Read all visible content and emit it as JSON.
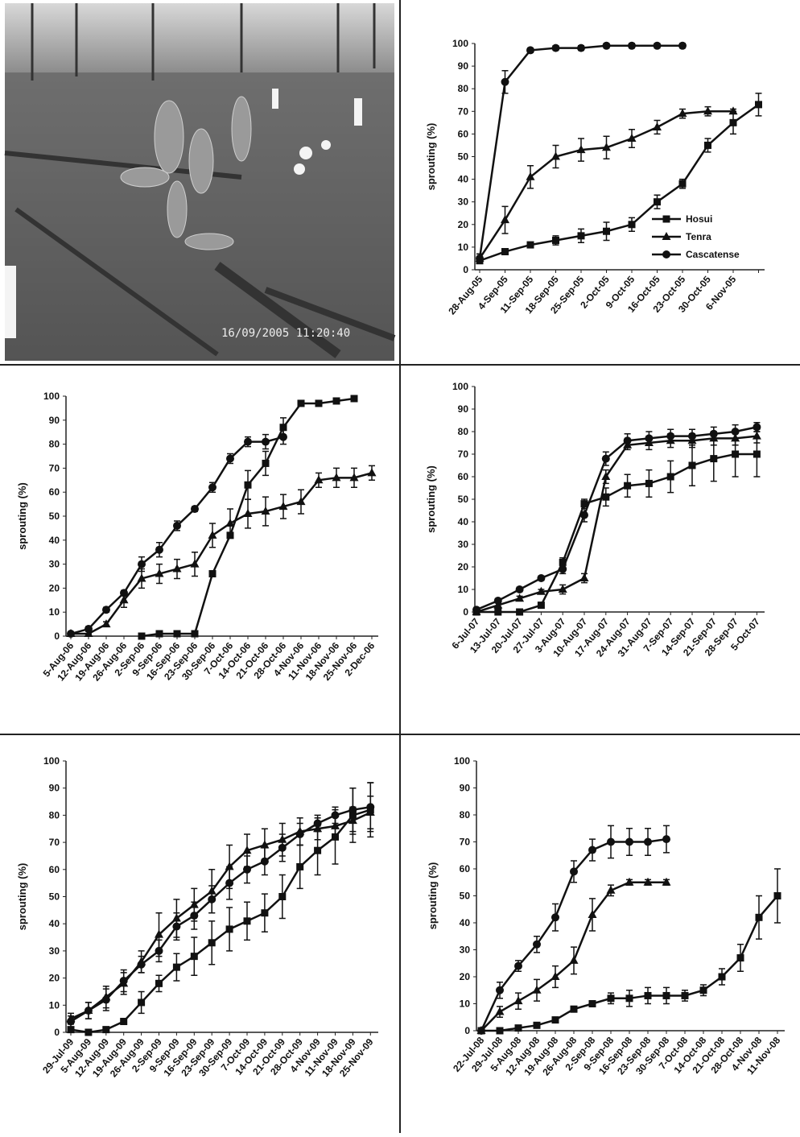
{
  "photo": {
    "timestamp": "16/09/2005 11:20:40"
  },
  "chart_data": [
    {
      "type": "line",
      "y_label": "sprouting (%)",
      "ylim": [
        0,
        100
      ],
      "yticks": [
        0,
        10,
        20,
        30,
        40,
        50,
        60,
        70,
        80,
        90,
        100
      ],
      "legend": "right",
      "categories": [
        "28-Aug-05",
        "4-Sep-05",
        "11-Sep-05",
        "18-Sep-05",
        "25-Sep-05",
        "2-Oct-05",
        "9-Oct-05",
        "16-Oct-05",
        "23-Oct-05",
        "30-Oct-05",
        "6-Nov-05",
        null
      ],
      "series": [
        {
          "name": "Hosui",
          "marker": "square",
          "color": "#111111",
          "values": [
            4,
            8,
            11,
            13,
            15,
            17,
            20,
            30,
            38,
            55,
            65,
            73
          ],
          "errors": [
            1,
            1,
            1,
            2,
            3,
            4,
            3,
            3,
            2,
            3,
            5,
            5
          ]
        },
        {
          "name": "Tenra",
          "marker": "triangle",
          "color": "#111111",
          "values": [
            5,
            22,
            41,
            50,
            53,
            54,
            58,
            63,
            69,
            70,
            70,
            null
          ],
          "errors": [
            2,
            6,
            5,
            5,
            5,
            5,
            4,
            3,
            2,
            2,
            1,
            null
          ]
        },
        {
          "name": "Cascatense",
          "marker": "circle",
          "color": "#111111",
          "values": [
            5,
            83,
            97,
            98,
            98,
            99,
            99,
            99,
            99,
            null,
            null,
            null
          ],
          "errors": [
            2,
            5,
            1,
            1,
            1,
            1,
            1,
            1,
            1,
            null,
            null,
            null
          ]
        }
      ]
    },
    {
      "type": "line",
      "y_label": "sprouting (%)",
      "ylim": [
        0,
        100
      ],
      "yticks": [
        0,
        10,
        20,
        30,
        40,
        50,
        60,
        70,
        80,
        90,
        100
      ],
      "categories": [
        "5-Aug-06",
        "12-Aug-06",
        "19-Aug-06",
        "26-Aug-06",
        "2-Sep-06",
        "9-Sep-06",
        "16-Sep-06",
        "23-Sep-06",
        "30-Sep-06",
        "7-Oct-06",
        "14-Oct-06",
        "21-Oct-06",
        "28-Oct-06",
        "4-Nov-06",
        "11-Nov-06",
        "18-Nov-06",
        "25-Nov-06",
        "2-Dec-06"
      ],
      "series": [
        {
          "marker": "square",
          "color": "#111111",
          "values": [
            null,
            null,
            null,
            null,
            0,
            1,
            1,
            1,
            26,
            42,
            63,
            72,
            87,
            97,
            97,
            98,
            99,
            null
          ],
          "errors": [
            null,
            null,
            null,
            null,
            0,
            0,
            0,
            0,
            1,
            1,
            6,
            5,
            4,
            1,
            1,
            1,
            1,
            null
          ]
        },
        {
          "marker": "triangle",
          "color": "#111111",
          "values": [
            1,
            1,
            5,
            15,
            24,
            26,
            28,
            30,
            42,
            47,
            51,
            52,
            54,
            56,
            65,
            66,
            66,
            68
          ],
          "errors": [
            0,
            0,
            1,
            3,
            4,
            4,
            4,
            5,
            5,
            6,
            6,
            6,
            5,
            5,
            3,
            4,
            4,
            3
          ]
        },
        {
          "marker": "circle",
          "color": "#111111",
          "values": [
            1,
            3,
            11,
            18,
            30,
            36,
            46,
            53,
            62,
            74,
            81,
            81,
            83,
            null,
            null,
            null,
            null,
            null
          ],
          "errors": [
            0,
            1,
            1,
            1,
            3,
            3,
            2,
            1,
            2,
            2,
            2,
            3,
            3,
            null,
            null,
            null,
            null,
            null
          ]
        }
      ]
    },
    {
      "type": "line",
      "y_label": "sprouting (%)",
      "ylim": [
        0,
        100
      ],
      "yticks": [
        0,
        10,
        20,
        30,
        40,
        50,
        60,
        70,
        80,
        90,
        100
      ],
      "categories": [
        "6-Jul-07",
        "13-Jul-07",
        "20-Jul-07",
        "27-Jul-07",
        "3-Aug-07",
        "10-Aug-07",
        "17-Aug-07",
        "24-Aug-07",
        "31-Aug-07",
        "7-Sep-07",
        "14-Sep-07",
        "21-Sep-07",
        "28-Sep-07",
        "5-Oct-07"
      ],
      "series": [
        {
          "marker": "square",
          "color": "#111111",
          "values": [
            0,
            0,
            0,
            3,
            22,
            48,
            51,
            56,
            57,
            60,
            65,
            68,
            70,
            70
          ],
          "errors": [
            0,
            0,
            0,
            1,
            2,
            2,
            4,
            5,
            6,
            7,
            9,
            10,
            10,
            10
          ]
        },
        {
          "marker": "triangle",
          "color": "#111111",
          "values": [
            0,
            3,
            6,
            9,
            10,
            15,
            60,
            74,
            75,
            76,
            76,
            77,
            77,
            78
          ],
          "errors": [
            0,
            1,
            1,
            1,
            2,
            2,
            3,
            2,
            3,
            3,
            3,
            3,
            3,
            3
          ]
        },
        {
          "marker": "circle",
          "color": "#111111",
          "values": [
            1,
            5,
            10,
            15,
            19,
            43,
            68,
            76,
            77,
            78,
            78,
            79,
            80,
            82
          ],
          "errors": [
            0,
            1,
            1,
            1,
            2,
            3,
            3,
            3,
            3,
            3,
            3,
            3,
            3,
            2
          ]
        }
      ]
    },
    {
      "type": "line",
      "y_label": "sprouting (%)",
      "ylim": [
        0,
        100
      ],
      "yticks": [
        0,
        10,
        20,
        30,
        40,
        50,
        60,
        70,
        80,
        90,
        100
      ],
      "categories": [
        "29-Jul-09",
        "5-Aug-09",
        "12-Aug-09",
        "19-Aug-09",
        "26-Aug-09",
        "2-Sep-09",
        "9-Sep-09",
        "16-Sep-09",
        "23-Sep-09",
        "30-Sep-09",
        "7-Oct-09",
        "14-Oct-09",
        "21-Oct-09",
        "28-Oct-09",
        "4-Nov-09",
        "11-Nov-09",
        "18-Nov-09",
        "25-Nov-09"
      ],
      "series": [
        {
          "marker": "square",
          "color": "#111111",
          "values": [
            1,
            0,
            1,
            4,
            11,
            18,
            24,
            28,
            33,
            38,
            41,
            44,
            50,
            61,
            67,
            72,
            80,
            82
          ],
          "errors": [
            0,
            0,
            0,
            1,
            4,
            3,
            5,
            7,
            8,
            8,
            7,
            7,
            8,
            8,
            9,
            10,
            10,
            10
          ]
        },
        {
          "marker": "circle",
          "color": "#111111",
          "values": [
            4,
            8,
            12,
            19,
            25,
            30,
            39,
            43,
            49,
            55,
            60,
            63,
            68,
            73,
            77,
            80,
            82,
            83
          ],
          "errors": [
            2,
            3,
            4,
            4,
            3,
            4,
            5,
            5,
            5,
            6,
            5,
            5,
            5,
            4,
            3,
            3,
            8,
            9
          ]
        },
        {
          "marker": "triangle",
          "color": "#111111",
          "values": [
            5,
            8,
            13,
            18,
            26,
            36,
            42,
            47,
            52,
            61,
            67,
            69,
            71,
            74,
            75,
            76,
            78,
            81
          ],
          "errors": [
            2,
            3,
            4,
            4,
            4,
            8,
            7,
            6,
            8,
            8,
            6,
            6,
            6,
            5,
            4,
            4,
            5,
            6
          ]
        }
      ]
    },
    {
      "type": "line",
      "y_label": "sprouting (%)",
      "ylim": [
        0,
        100
      ],
      "yticks": [
        0,
        10,
        20,
        30,
        40,
        50,
        60,
        70,
        80,
        90,
        100
      ],
      "categories": [
        "22-Jul-08",
        "29-Jul-08",
        "5-Aug-08",
        "12-Aug-08",
        "19-Aug-08",
        "26-Aug-08",
        "2-Sep-08",
        "9-Sep-08",
        "16-Sep-08",
        "23-Sep-08",
        "30-Sep-08",
        "7-Oct-08",
        "14-Oct-08",
        "21-Oct-08",
        "28-Oct-08",
        "4-Nov-08",
        "11-Nov-08"
      ],
      "series": [
        {
          "marker": "square",
          "color": "#111111",
          "values": [
            0,
            0,
            1,
            2,
            4,
            8,
            10,
            12,
            12,
            13,
            13,
            13,
            15,
            20,
            27,
            42,
            50
          ],
          "errors": [
            0,
            0,
            0,
            0,
            1,
            1,
            1,
            2,
            3,
            3,
            3,
            2,
            2,
            3,
            5,
            8,
            10
          ]
        },
        {
          "marker": "triangle",
          "color": "#111111",
          "values": [
            0,
            7,
            11,
            15,
            20,
            26,
            43,
            52,
            55,
            55,
            55,
            null,
            null,
            null,
            null,
            null,
            null
          ],
          "errors": [
            0,
            2,
            3,
            4,
            4,
            5,
            6,
            2,
            1,
            1,
            1,
            null,
            null,
            null,
            null,
            null,
            null
          ]
        },
        {
          "marker": "circle",
          "color": "#111111",
          "values": [
            0,
            15,
            24,
            32,
            42,
            59,
            67,
            70,
            70,
            70,
            71,
            null,
            null,
            null,
            null,
            null,
            null
          ],
          "errors": [
            0,
            3,
            2,
            3,
            5,
            4,
            4,
            6,
            5,
            5,
            5,
            null,
            null,
            null,
            null,
            null,
            null
          ]
        }
      ]
    }
  ]
}
